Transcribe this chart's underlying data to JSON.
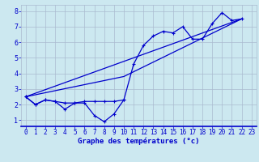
{
  "xlabel": "Graphe des températures (°c)",
  "x_hours": [
    0,
    1,
    2,
    3,
    4,
    5,
    6,
    7,
    8,
    9,
    10,
    11,
    12,
    13,
    14,
    15,
    16,
    17,
    18,
    19,
    20,
    21,
    22,
    23
  ],
  "line_zigzag": [
    2.5,
    2.0,
    2.3,
    2.2,
    1.7,
    2.1,
    2.1,
    1.3,
    0.9,
    1.4,
    2.3,
    null,
    null,
    null,
    null,
    null,
    null,
    null,
    null,
    null,
    null,
    null,
    null,
    null
  ],
  "line_main": [
    2.5,
    2.0,
    2.3,
    2.2,
    2.1,
    2.1,
    2.2,
    2.2,
    2.2,
    2.2,
    2.3,
    4.6,
    5.8,
    6.4,
    6.7,
    6.6,
    7.0,
    6.2,
    6.2,
    7.2,
    7.9,
    7.4,
    7.5,
    null
  ],
  "line_diag1": [
    [
      0,
      2.5
    ],
    [
      22,
      7.5
    ]
  ],
  "line_diag2": [
    [
      0,
      2.5
    ],
    [
      10,
      3.8
    ],
    [
      22,
      7.5
    ]
  ],
  "bg_color": "#cce8f0",
  "grid_color": "#aabbd0",
  "line_color": "#0000cc",
  "ylim": [
    0.6,
    8.4
  ],
  "xlim": [
    -0.5,
    23.5
  ],
  "yticks": [
    1,
    2,
    3,
    4,
    5,
    6,
    7,
    8
  ],
  "xticks": [
    0,
    1,
    2,
    3,
    4,
    5,
    6,
    7,
    8,
    9,
    10,
    11,
    12,
    13,
    14,
    15,
    16,
    17,
    18,
    19,
    20,
    21,
    22,
    23
  ],
  "tick_fontsize": 5.5,
  "xlabel_fontsize": 6.5
}
